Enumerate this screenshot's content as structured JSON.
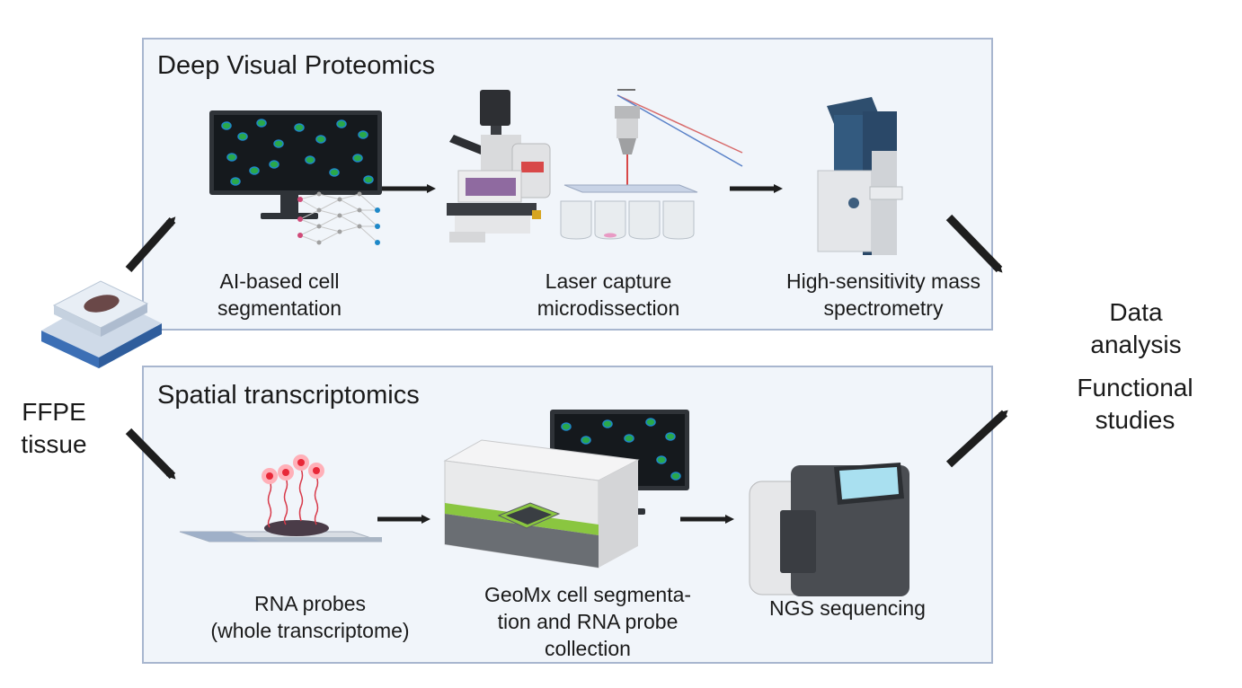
{
  "panels": {
    "dvp": {
      "title": "Deep Visual Proteomics",
      "steps": [
        {
          "label": "AI-based cell\nsegmentation",
          "icon": "ai-monitor-icon"
        },
        {
          "label": "Laser capture\nmicrodissection",
          "icon": "microscope-icon"
        },
        {
          "label": "High-sensitivity mass\nspectrometry",
          "icon": "mass-spectrometer-icon"
        }
      ]
    },
    "st": {
      "title": "Spatial transcriptomics",
      "steps": [
        {
          "label": "RNA probes\n(whole transcriptome)",
          "icon": "rna-probe-slide-icon"
        },
        {
          "label": "GeoMx cell segmenta-\ntion and RNA probe\ncollection",
          "icon": "geomx-instrument-icon"
        },
        {
          "label": "NGS sequencing",
          "icon": "ngs-sequencer-icon"
        }
      ]
    }
  },
  "input": {
    "label": "FFPE\ntissue",
    "icon": "ffpe-slide-icon"
  },
  "outputs": {
    "data_analysis": "Data analysis",
    "functional": "Functional\nstudies"
  },
  "colors": {
    "panel_bg": "#f1f5fa",
    "panel_border": "#a8b6cf",
    "arrow": "#1e1e1e",
    "cell_green": "#2aa84a",
    "cell_blue": "#1e88c8"
  }
}
